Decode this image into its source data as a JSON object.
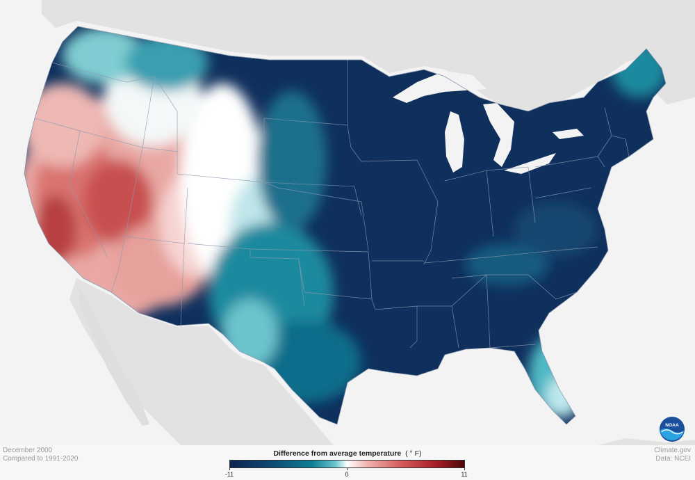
{
  "map": {
    "layers": [
      "canada-land",
      "mexico-land",
      "conus-temperature-anomaly",
      "state-boundaries",
      "great-lakes"
    ],
    "colors": {
      "background": "#f3f3f3",
      "neighbor_land": "#e2e2e2",
      "water": "#f3f3f3",
      "boundary": "#8a9ab0"
    },
    "regions_shown": {
      "warm": "West (California, Nevada, Utah, Arizona, Oregon)",
      "cold": "Plains, Midwest, South, East"
    }
  },
  "legend": {
    "title": "Difference from average temperature",
    "unit": "( ° F)",
    "min_label": "-11",
    "mid_label": "0",
    "max_label": "11",
    "scale_colors": [
      "#0e2550",
      "#0f4a73",
      "#0d7f95",
      "#6cc6cf",
      "#ffffff",
      "#f1b8b5",
      "#d7605e",
      "#a51e26",
      "#4b0507"
    ]
  },
  "meta": {
    "period": "December 2000",
    "baseline": "Compared to 1991-2020",
    "site": "Climate.gov",
    "source": "Data: NCEI"
  },
  "logo": {
    "text": "NOAA",
    "icon": "noaa-logo-icon",
    "colors": [
      "#1a4f9c",
      "#2aa3e0",
      "#ffffff"
    ]
  }
}
